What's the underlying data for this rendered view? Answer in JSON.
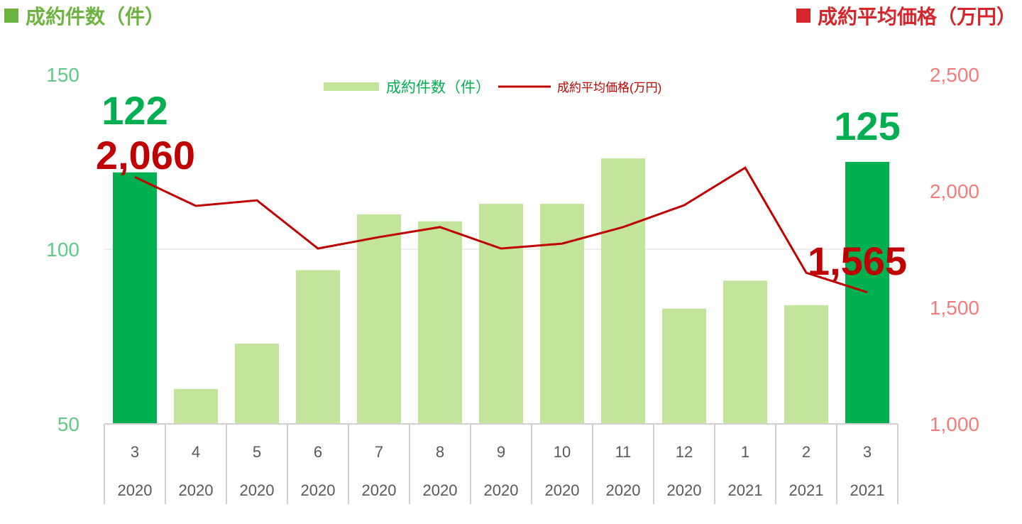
{
  "header_left": "成約件数（件）",
  "header_right": "成約平均価格（万円）",
  "colors": {
    "bar_light": "#c3e49b",
    "bar_highlight": "#00b050",
    "line": "#c00000",
    "left_axis": "#5fc98a",
    "right_axis": "#f47b7b",
    "label_green": "#00b050",
    "label_red": "#c00000"
  },
  "chart_data": {
    "type": "bar+line",
    "categories": [
      {
        "month": "3",
        "year": "2020"
      },
      {
        "month": "4",
        "year": "2020"
      },
      {
        "month": "5",
        "year": "2020"
      },
      {
        "month": "6",
        "year": "2020"
      },
      {
        "month": "7",
        "year": "2020"
      },
      {
        "month": "8",
        "year": "2020"
      },
      {
        "month": "9",
        "year": "2020"
      },
      {
        "month": "10",
        "year": "2020"
      },
      {
        "month": "11",
        "year": "2020"
      },
      {
        "month": "12",
        "year": "2020"
      },
      {
        "month": "1",
        "year": "2021"
      },
      {
        "month": "2",
        "year": "2021"
      },
      {
        "month": "3",
        "year": "2021"
      }
    ],
    "series": [
      {
        "name": "成約件数（件）",
        "type": "bar",
        "axis": "left",
        "values": [
          122,
          60,
          73,
          94,
          110,
          108,
          113,
          113,
          126,
          83,
          91,
          84,
          125
        ],
        "highlight": [
          0,
          12
        ]
      },
      {
        "name": "成約平均価格(万円)",
        "type": "line",
        "axis": "right",
        "values": [
          2060,
          1936,
          1960,
          1753,
          1802,
          1845,
          1753,
          1774,
          1845,
          1939,
          2100,
          1649,
          1565
        ]
      }
    ],
    "left_axis": {
      "ylim": [
        50,
        150
      ],
      "ticks": [
        "50",
        "100",
        "150"
      ]
    },
    "right_axis": {
      "ylim": [
        1000,
        2500
      ],
      "ticks": [
        "1,000",
        "1,500",
        "2,000",
        "2,500"
      ]
    },
    "gridlines": [
      100
    ],
    "legend": {
      "placement": "top-center",
      "bar_label": "成約件数（件）",
      "line_label": "成約平均価格(万円)"
    },
    "annotations": {
      "bar_first": "122",
      "bar_last": "125",
      "line_first": "2,060",
      "line_last": "1,565"
    }
  }
}
